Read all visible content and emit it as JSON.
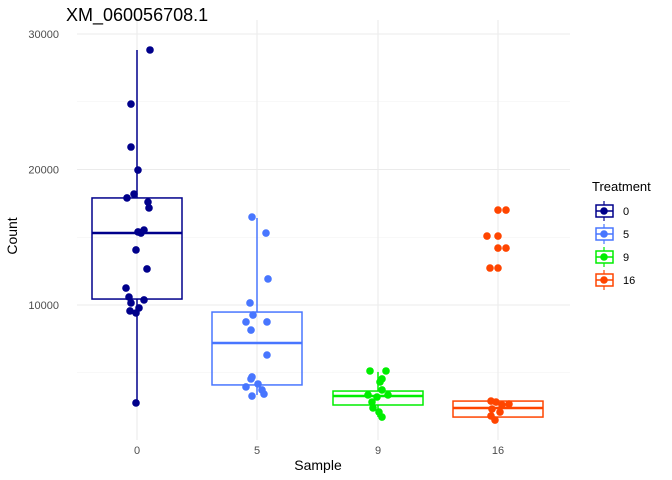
{
  "chart_data": {
    "type": "box",
    "title": "XM_060056708.1",
    "xlabel": "Sample",
    "ylabel": "Count",
    "ylim": [
      0,
      30000
    ],
    "yticks": [
      "10000",
      "20000",
      "30000"
    ],
    "ytick_values": [
      10000,
      20000,
      30000
    ],
    "categories": [
      "0",
      "5",
      "9",
      "16"
    ],
    "grid": true,
    "legend": {
      "title": "Treatment",
      "position": "right",
      "entries": [
        "0",
        "5",
        "9",
        "16"
      ]
    },
    "colors": [
      "#00008B",
      "#4876FF",
      "#00EE00",
      "#FF4500"
    ],
    "series": [
      {
        "name": "0",
        "box": {
          "lower_whisker": 2770,
          "q1": 10440,
          "median": 15310,
          "q3": 17900,
          "upper_whisker": 28820
        },
        "points": [
          28820,
          24830,
          21660,
          19960,
          18190,
          17900,
          17600,
          17160,
          15390,
          15530,
          15310,
          14060,
          12660,
          11250,
          10590,
          10370,
          10150,
          9780,
          9560,
          9410,
          2770
        ]
      },
      {
        "name": "5",
        "box": {
          "lower_whisker": 3360,
          "q1": 4100,
          "median": 7200,
          "q3": 9480,
          "upper_whisker": 16420
        },
        "points": [
          16490,
          15310,
          11920,
          10150,
          9260,
          8750,
          8750,
          8150,
          6310,
          4690,
          4540,
          3950,
          4170,
          3730,
          3430,
          3280
        ]
      },
      {
        "name": "9",
        "box": {
          "lower_whisker": 1730,
          "q1": 2620,
          "median": 3280,
          "q3": 3650,
          "upper_whisker": 5060
        },
        "points": [
          5130,
          5130,
          4540,
          4320,
          3730,
          3360,
          3360,
          3210,
          2840,
          2400,
          2100,
          1730
        ]
      },
      {
        "name": "16",
        "box": {
          "lower_whisker": 1730,
          "q1": 1730,
          "median": 2400,
          "q3": 2910,
          "upper_whisker": 2910
        },
        "points": [
          17010,
          17010,
          15090,
          15090,
          14200,
          14200,
          12730,
          12730,
          2910,
          2840,
          2620,
          2690,
          2320,
          2100,
          1810,
          1510
        ]
      }
    ]
  }
}
